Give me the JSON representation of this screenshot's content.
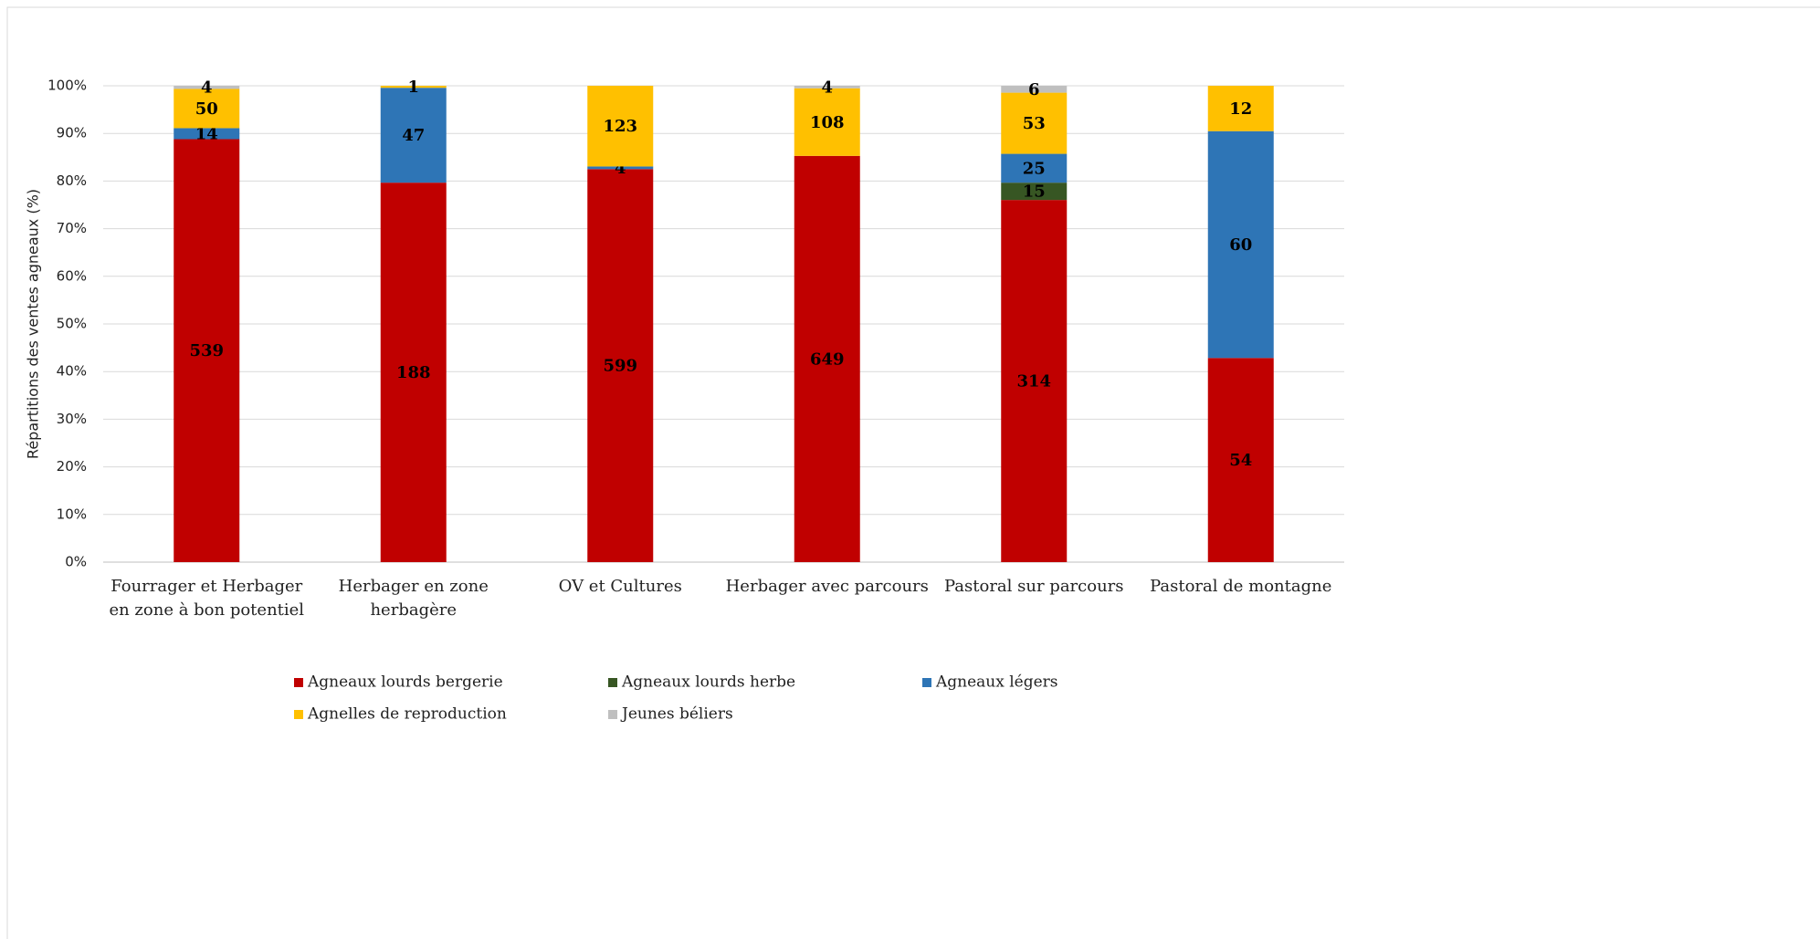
{
  "chart_data": {
    "type": "bar",
    "stacked": "percent",
    "y_label": "Répartitions des ventes agneaux (%)",
    "categories": [
      "Fourrager et Herbager en zone à bon potentiel",
      "Herbager en zone herbagère",
      "OV et Cultures",
      "Herbager avec parcours",
      "Pastoral sur parcours",
      "Pastoral de montagne"
    ],
    "series": [
      {
        "name": "Agneaux lourds bergerie",
        "color": "#c00000",
        "values": [
          539,
          188,
          599,
          649,
          314,
          54
        ]
      },
      {
        "name": "Agneaux lourds herbe",
        "color": "#375623",
        "values": [
          null,
          null,
          null,
          null,
          15,
          null
        ]
      },
      {
        "name": "Agneaux légers",
        "color": "#2e75b6",
        "values": [
          14,
          47,
          4,
          null,
          25,
          60
        ]
      },
      {
        "name": "Agnelles de reproduction",
        "color": "#ffc000",
        "values": [
          50,
          1,
          123,
          108,
          53,
          12
        ]
      },
      {
        "name": "Jeunes béliers",
        "color": "#bfbfbf",
        "values": [
          4,
          null,
          null,
          4,
          6,
          null
        ]
      }
    ],
    "ylim": [
      0,
      100
    ],
    "yticks": [
      {
        "value": 0,
        "label": "0%"
      },
      {
        "value": 10,
        "label": "10%"
      },
      {
        "value": 20,
        "label": "20%"
      },
      {
        "value": 30,
        "label": "30%"
      },
      {
        "value": 40,
        "label": "40%"
      },
      {
        "value": 50,
        "label": "50%"
      },
      {
        "value": 60,
        "label": "60%"
      },
      {
        "value": 70,
        "label": "70%"
      },
      {
        "value": 80,
        "label": "80%"
      },
      {
        "value": 90,
        "label": "90%"
      },
      {
        "value": 100,
        "label": "100%"
      }
    ],
    "grid": true,
    "legend": "bottom"
  }
}
